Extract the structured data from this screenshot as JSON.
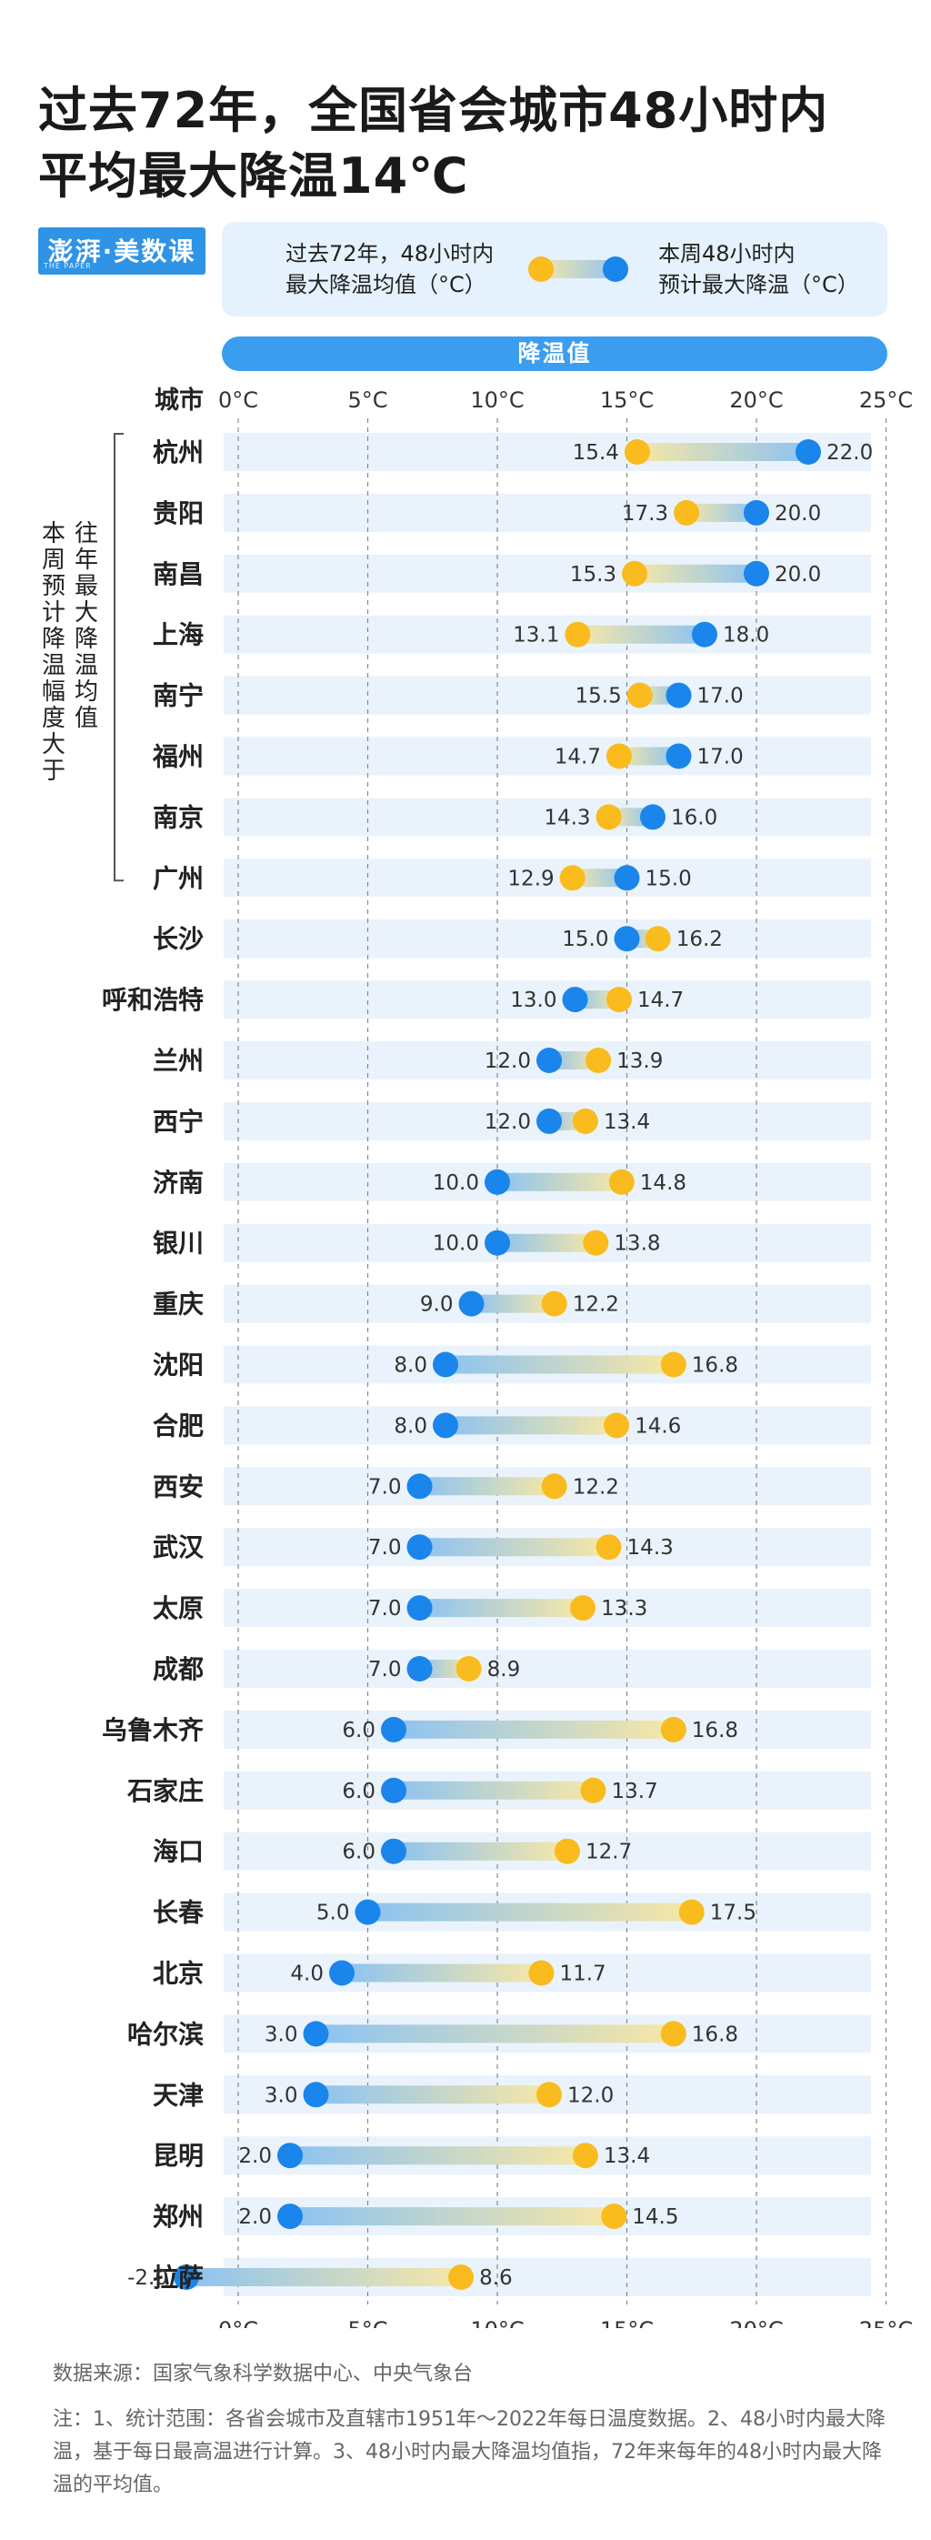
{
  "title": "过去72年，全国省会城市48小时内\n平均最大降温14℃",
  "logo": {
    "text": "澎湃·美数课",
    "subtext": "THE PAPER"
  },
  "legend": {
    "past_label": "过去72年，48小时内\n最大降温均值（°C）",
    "week_label": "本周48小时内\n预计最大降温（°C）",
    "colors": {
      "past": "#f9bb1d",
      "week": "#1a85eb"
    }
  },
  "axis_bar_label": "降温值",
  "side_group_label": {
    "line1": "往年最大降温均值",
    "line2": "本周预计降温幅度大于"
  },
  "footer": {
    "source": "数据来源：国家气象科学数据中心、中央气象台",
    "notes": "注：1、统计范围：各省会城市及直辖市1951年～2022年每日温度数据。2、48小时内最大降温，基于每日最高温进行计算。3、48小时内最大降温均值指，72年来每年的48小时内最大降温的平均值。"
  },
  "chart_data": {
    "type": "dumbbell",
    "xlabel": "城市",
    "xlim": [
      0,
      25
    ],
    "ticks": [
      0,
      5,
      10,
      15,
      20,
      25
    ],
    "tick_labels": [
      "0°C",
      "5°C",
      "10°C",
      "15°C",
      "20°C",
      "25°C"
    ],
    "grid": true,
    "series": [
      {
        "name": "过去72年，48小时内最大降温均值（°C）",
        "key": "past"
      },
      {
        "name": "本周48小时内预计最大降温（°C）",
        "key": "week"
      }
    ],
    "rows": [
      {
        "city": "杭州",
        "past": 15.4,
        "week": 22.0
      },
      {
        "city": "贵阳",
        "past": 17.3,
        "week": 20.0
      },
      {
        "city": "南昌",
        "past": 15.3,
        "week": 20.0
      },
      {
        "city": "上海",
        "past": 13.1,
        "week": 18.0
      },
      {
        "city": "南宁",
        "past": 15.5,
        "week": 17.0
      },
      {
        "city": "福州",
        "past": 14.7,
        "week": 17.0
      },
      {
        "city": "南京",
        "past": 14.3,
        "week": 16.0
      },
      {
        "city": "广州",
        "past": 12.9,
        "week": 15.0
      },
      {
        "city": "长沙",
        "past": 16.2,
        "week": 15.0
      },
      {
        "city": "呼和浩特",
        "past": 14.7,
        "week": 13.0
      },
      {
        "city": "兰州",
        "past": 13.9,
        "week": 12.0
      },
      {
        "city": "西宁",
        "past": 13.4,
        "week": 12.0
      },
      {
        "city": "济南",
        "past": 14.8,
        "week": 10.0
      },
      {
        "city": "银川",
        "past": 13.8,
        "week": 10.0
      },
      {
        "city": "重庆",
        "past": 12.2,
        "week": 9.0
      },
      {
        "city": "沈阳",
        "past": 16.8,
        "week": 8.0
      },
      {
        "city": "合肥",
        "past": 14.6,
        "week": 8.0
      },
      {
        "city": "西安",
        "past": 12.2,
        "week": 7.0
      },
      {
        "city": "武汉",
        "past": 14.3,
        "week": 7.0
      },
      {
        "city": "太原",
        "past": 13.3,
        "week": 7.0
      },
      {
        "city": "成都",
        "past": 8.9,
        "week": 7.0
      },
      {
        "city": "乌鲁木齐",
        "past": 16.8,
        "week": 6.0
      },
      {
        "city": "石家庄",
        "past": 13.7,
        "week": 6.0
      },
      {
        "city": "海口",
        "past": 12.7,
        "week": 6.0
      },
      {
        "city": "长春",
        "past": 17.5,
        "week": 5.0
      },
      {
        "city": "北京",
        "past": 11.7,
        "week": 4.0
      },
      {
        "city": "哈尔滨",
        "past": 16.8,
        "week": 3.0
      },
      {
        "city": "天津",
        "past": 12.0,
        "week": 3.0
      },
      {
        "city": "昆明",
        "past": 13.4,
        "week": 2.0
      },
      {
        "city": "郑州",
        "past": 14.5,
        "week": 2.0
      },
      {
        "city": "拉萨",
        "past": 8.6,
        "week": -2.0
      }
    ]
  }
}
